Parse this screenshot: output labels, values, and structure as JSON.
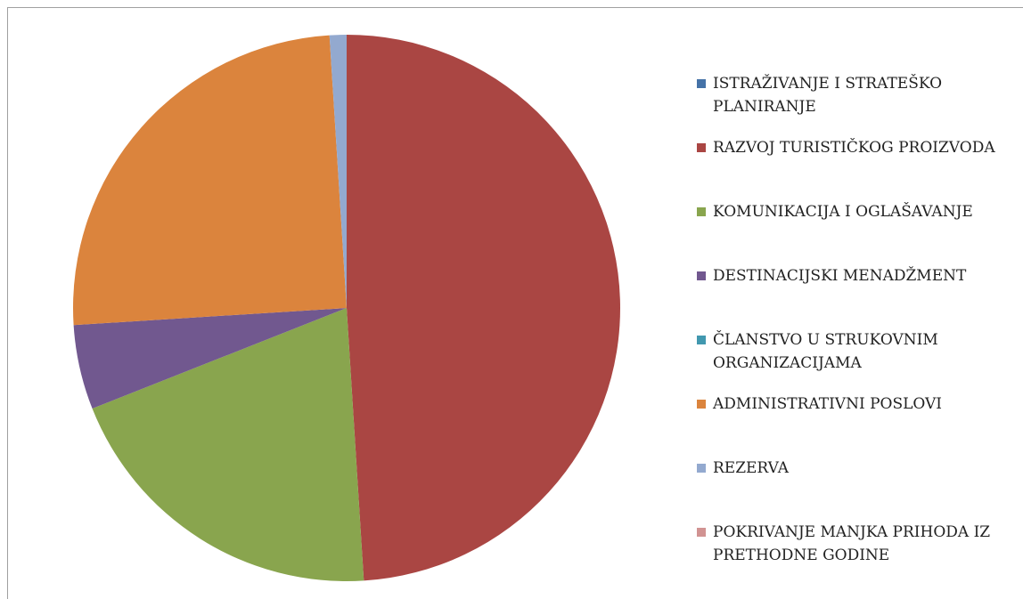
{
  "chart_data": {
    "type": "pie",
    "categories": [
      "ISTRAŽIVANJE I STRATEŠKO PLANIRANJE",
      "RAZVOJ TURISTIČKOG PROIZVODA",
      "KOMUNIKACIJA I OGLAŠAVANJE",
      "DESTINACIJSKI MENADŽMENT",
      "ČLANSTVO U STRUKOVNIM ORGANIZACIJAMA",
      "ADMINISTRATIVNI POSLOVI",
      "REZERVA",
      "POKRIVANJE MANJKA PRIHODA IZ PRETHODNE GODINE"
    ],
    "values": [
      0,
      49,
      20,
      5,
      0,
      25,
      1,
      0
    ],
    "colors": [
      "#4572A7",
      "#AA4643",
      "#89A54E",
      "#71588F",
      "#4198AF",
      "#DB843D",
      "#93A9CF",
      "#D19392"
    ],
    "legend": "right"
  }
}
